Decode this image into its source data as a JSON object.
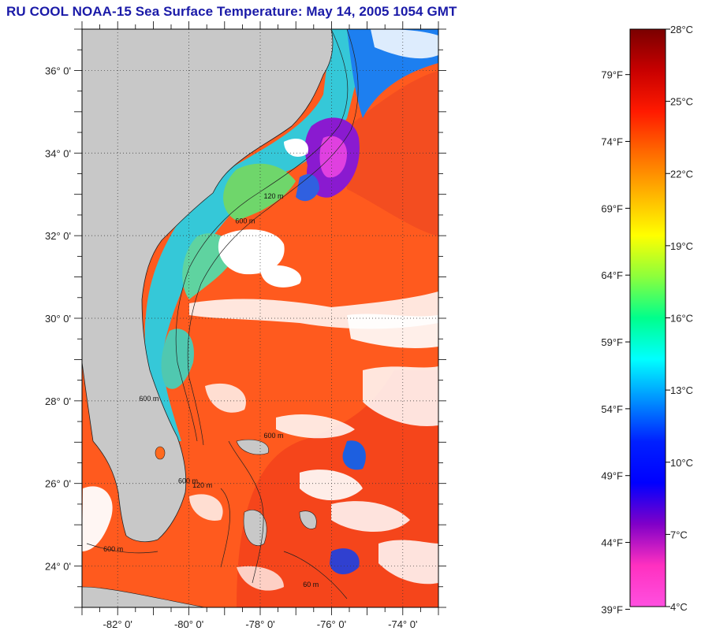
{
  "title": "RU COOL  NOAA-15  Sea Surface Temperature:  May 14, 2005 1054 GMT",
  "map": {
    "lat_labels": [
      "24° 0'",
      "26° 0'",
      "28° 0'",
      "30° 0'",
      "32° 0'",
      "34° 0'",
      "36° 0'"
    ],
    "lat_values": [
      24,
      26,
      28,
      30,
      32,
      34,
      36
    ],
    "lon_labels": [
      "-82° 0'",
      "-80° 0'",
      "-78° 0'",
      "-76° 0'",
      "-74° 0'"
    ],
    "lon_values": [
      -82,
      -80,
      -78,
      -76,
      -74
    ],
    "lat_range": [
      23,
      37
    ],
    "lon_range": [
      -83,
      -73
    ],
    "grid": true,
    "contour_labels": [
      "600 m",
      "120 m",
      "60 m"
    ],
    "colors": {
      "land": "#c8c8c8",
      "cloud": "#ffffff",
      "warm_water": "#ff5a1e"
    }
  },
  "colorbar": {
    "celsius_labels": [
      "28°C",
      "25°C",
      "22°C",
      "19°C",
      "16°C",
      "13°C",
      "10°C",
      "7°C",
      "4°C"
    ],
    "celsius_values": [
      28,
      25,
      22,
      19,
      16,
      13,
      10,
      7,
      4
    ],
    "fahrenheit_labels": [
      "79°F",
      "74°F",
      "69°F",
      "64°F",
      "59°F",
      "54°F",
      "49°F",
      "44°F",
      "39°F"
    ],
    "fahrenheit_values": [
      79,
      74,
      69,
      64,
      59,
      54,
      49,
      44,
      39
    ],
    "range_c": [
      4,
      28
    ],
    "colors_top_to_bottom": [
      "#7a0000",
      "#c80000",
      "#ff1a00",
      "#ff6a00",
      "#ffb400",
      "#ffff00",
      "#8cff3c",
      "#00ff8c",
      "#00ffff",
      "#0090ff",
      "#0020ff",
      "#0000ff",
      "#8000c8",
      "#ff30c0",
      "#ff50e0"
    ]
  }
}
